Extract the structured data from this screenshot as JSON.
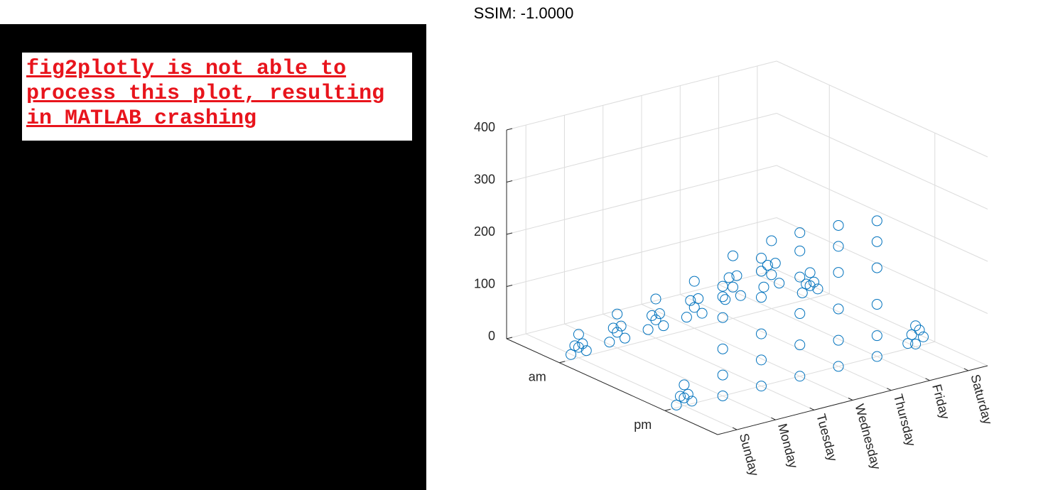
{
  "left_panel": {
    "message": "fig2plotly is not able to process this plot, resulting in MATLAB crashing"
  },
  "chart_data": {
    "type": "scatter3d",
    "title": "SSIM: -1.0000",
    "color": "#0072bd",
    "grid": true,
    "xlim": [
      0.5,
      7.5
    ],
    "xticks": [
      {
        "value": 1,
        "label": "Sunday"
      },
      {
        "value": 2,
        "label": "Monday"
      },
      {
        "value": 3,
        "label": "Tuesday"
      },
      {
        "value": 4,
        "label": "Wednesday"
      },
      {
        "value": 5,
        "label": "Thursday"
      },
      {
        "value": 6,
        "label": "Friday"
      },
      {
        "value": 7,
        "label": "Saturday"
      }
    ],
    "ylim": [
      0.5,
      2.5
    ],
    "yticks": [
      {
        "value": 1,
        "label": "am"
      },
      {
        "value": 2,
        "label": "pm"
      }
    ],
    "zlim": [
      0,
      400
    ],
    "zticks": [
      0,
      100,
      200,
      300,
      400
    ],
    "x": [
      0.8,
      0.9,
      1,
      1.1,
      1.2,
      1,
      1.8,
      1.9,
      2,
      2.1,
      2.2,
      2,
      2.8,
      2.9,
      3,
      3.1,
      3.2,
      3,
      3.8,
      3.9,
      4,
      4.1,
      4.2,
      4,
      4.8,
      4.9,
      5,
      5.1,
      5.2,
      5,
      5.8,
      5.9,
      6,
      6.1,
      6.2,
      6,
      6.8,
      6.9,
      7,
      7.1,
      7.2,
      7,
      0.8,
      0.9,
      1,
      1.1,
      1.2,
      1,
      2,
      2,
      2,
      2,
      2,
      2,
      3,
      3,
      3,
      3,
      3,
      3,
      4,
      4,
      4,
      4,
      4,
      4,
      5,
      5,
      5,
      5,
      5,
      5,
      6,
      6,
      6,
      6,
      6,
      6,
      6.8,
      6.9,
      7,
      7.1,
      7.2,
      7
    ],
    "y": [
      1,
      1,
      1,
      1,
      1,
      1,
      1,
      1,
      1,
      1,
      1,
      1,
      1,
      1,
      1,
      1,
      1,
      1,
      1,
      1,
      1,
      1,
      1,
      1,
      1,
      1,
      1,
      1,
      1,
      1,
      1,
      1,
      1,
      1,
      1,
      1,
      1,
      1,
      1,
      1,
      1,
      1,
      2,
      2,
      2,
      2,
      2,
      2,
      2,
      2,
      2,
      2,
      2,
      2,
      2,
      2,
      2,
      2,
      2,
      2,
      2,
      2,
      2,
      2,
      2,
      2,
      2,
      2,
      2,
      2,
      2,
      2,
      2,
      2,
      2,
      2,
      2,
      2,
      2,
      2,
      2,
      2,
      2,
      2
    ],
    "z": [
      10,
      25,
      45,
      25,
      10,
      20,
      15,
      40,
      65,
      40,
      15,
      30,
      20,
      45,
      75,
      45,
      20,
      35,
      25,
      55,
      90,
      55,
      25,
      40,
      40,
      80,
      120,
      80,
      40,
      60,
      45,
      85,
      130,
      85,
      45,
      65,
      15,
      30,
      50,
      30,
      15,
      25,
      5,
      20,
      40,
      20,
      5,
      15,
      0,
      40,
      90,
      150,
      210,
      190,
      0,
      50,
      100,
      170,
      245,
      220,
      0,
      60,
      120,
      190,
      275,
      240,
      0,
      50,
      110,
      180,
      270,
      230,
      0,
      40,
      100,
      170,
      260,
      220,
      10,
      25,
      40,
      30,
      15,
      5
    ]
  }
}
